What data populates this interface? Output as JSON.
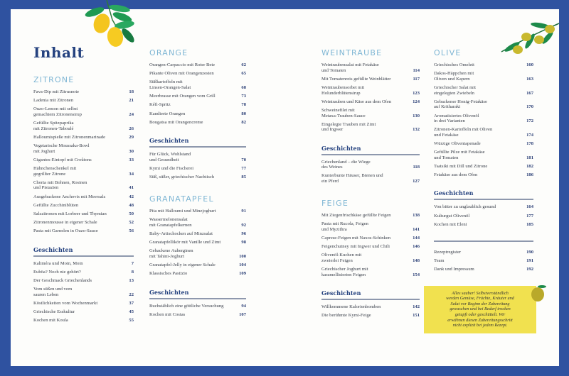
{
  "title": "Inhalt",
  "colors": {
    "border": "#2f52a0",
    "section_heading": "#7fb6d4",
    "title": "#25427f",
    "note_background": "#f1e14f"
  },
  "columns": [
    {
      "blocks": [
        {
          "type": "title",
          "label": "Inhalt"
        },
        {
          "type": "section",
          "heading": "ZITRONE",
          "items": [
            {
              "title": "Fava-Dip mit Zitrusnote",
              "page": "18"
            },
            {
              "title": "Ladenia mit Zitronen",
              "page": "21"
            },
            {
              "title": "Ouzo-Lemon mit selbst\ngemachtem Zitronensirup",
              "page": "24"
            },
            {
              "title": "Gefüllte Spitzpaprika\nmit Zitronen-Taboulé",
              "page": "26"
            },
            {
              "title": "Halloumispieße mit Zitronenmarinade",
              "page": "29"
            },
            {
              "title": "Vegetarische Moussaka-Bowl\nmit Joghurt",
              "page": "30"
            },
            {
              "title": "Gigantes-Eintopf mit Croûtons",
              "page": "33"
            },
            {
              "title": "Hähnchenschenkel mit\ngegrillter Zitrone",
              "page": "34"
            },
            {
              "title": "Chorta mit Bohnen, Rosinen\nund Pistazien",
              "page": "41"
            },
            {
              "title": "Ausgebackene Anchovis mit Meersalz",
              "page": "42"
            },
            {
              "title": "Gefüllte Zucchiniblüten",
              "page": "48"
            },
            {
              "title": "Salzzitronen mit Lorbeer und Thymian",
              "page": "50"
            },
            {
              "title": "Zitronenmousse in eigener Schale",
              "page": "52"
            },
            {
              "title": "Pasta mit Garnelen in Ouzo-Sauce",
              "page": "56"
            }
          ]
        },
        {
          "type": "stories",
          "heading": "Geschichten",
          "items": [
            {
              "title": "Kaliméra und Moin, Moin",
              "page": "7"
            },
            {
              "title": "Euböa? Noch nie gehört?",
              "page": "8"
            },
            {
              "title": "Der Geschmack Griechenlands",
              "page": "13"
            },
            {
              "title": "Vom süßen und vom\nsauren Leben",
              "page": "22"
            },
            {
              "title": "Köstlichkeiten vom Wochenmarkt",
              "page": "37"
            },
            {
              "title": "Griechische Esskultur",
              "page": "45"
            },
            {
              "title": "Kochen mit Koula",
              "page": "55"
            }
          ]
        }
      ]
    },
    {
      "blocks": [
        {
          "type": "section",
          "heading": "ORANGE",
          "items": [
            {
              "title": "Orangen-Carpaccio mit Roter Bete",
              "page": "62"
            },
            {
              "title": "Pikante Oliven mit Orangenzesten",
              "page": "65"
            },
            {
              "title": "Süßkartoffeln mit\nLinsen-Orangen-Salat",
              "page": "68"
            },
            {
              "title": "Meerbrasse mit Orangen vom Grill",
              "page": "73"
            },
            {
              "title": "Kéfi-Spritz",
              "page": "78"
            },
            {
              "title": "Kandierte Orangen",
              "page": "80"
            },
            {
              "title": "Bougatsa mit Orangencreme",
              "page": "82"
            }
          ]
        },
        {
          "type": "stories",
          "heading": "Geschichten",
          "items": [
            {
              "title": "Für Glück, Wohlstand\nund Gesundheit",
              "page": "70"
            },
            {
              "title": "Kymi und die Fischerei",
              "page": "77"
            },
            {
              "title": "Süß, süßer, griechischer Nachtisch",
              "page": "85"
            }
          ]
        },
        {
          "type": "section",
          "heading": "GRANATAPFEL",
          "items": [
            {
              "title": "Pita mit Halloumi und Minzjoghurt",
              "page": "91"
            },
            {
              "title": "Wassermelonensalat\nmit Granatapfelkernen",
              "page": "92"
            },
            {
              "title": "Baby-Artischocken auf Minzsalat",
              "page": "96"
            },
            {
              "title": "Granatapfellikör mit Vanille und Zimt",
              "page": "98"
            },
            {
              "title": "Gebackene Auberginen\nmit Tahini-Joghurt",
              "page": "100"
            },
            {
              "title": "Granatapfel-Jelly in eigener Schale",
              "page": "104"
            },
            {
              "title": "Klassisches Pastizio",
              "page": "109"
            }
          ]
        },
        {
          "type": "stories",
          "heading": "Geschichten",
          "items": [
            {
              "title": "Buchstäblich eine göttliche Versuchung",
              "page": "94"
            },
            {
              "title": "Kochen mit Costas",
              "page": "107"
            }
          ]
        }
      ]
    },
    {
      "blocks": [
        {
          "type": "section",
          "heading": "WEINTRAUBE",
          "items": [
            {
              "title": "Weintraubensalat mit Fetakäse\nund Tomaten",
              "page": "114"
            },
            {
              "title": "Mit Tomatenreis gefüllte Weinblätter",
              "page": "117"
            },
            {
              "title": "Weintraubensorbet mit\nHolunderblütensirup",
              "page": "123"
            },
            {
              "title": "Weintrauben und Käse aus dem Ofen",
              "page": "124"
            },
            {
              "title": "Schweinefilet mit\nMetaxa-Trauben-Sauce",
              "page": "130"
            },
            {
              "title": "Eingelegte Trauben mit Zimt\nund Ingwer",
              "page": "132"
            }
          ]
        },
        {
          "type": "stories",
          "heading": "Geschichten",
          "items": [
            {
              "title": "Griechenland – die Wiege\ndes Weines",
              "page": "118"
            },
            {
              "title": "Kunterbunte Häuser, Bienen und\nein Pferd",
              "page": "127"
            }
          ]
        },
        {
          "type": "section",
          "heading": "FEIGE",
          "items": [
            {
              "title": "Mit Ziegenfrischkäse gefüllte Feigen",
              "page": "138"
            },
            {
              "title": "Pasta mit Rucola, Feigen\nund Myzithra",
              "page": "141"
            },
            {
              "title": "Caprese-Feigen mit Naxos-Schinken",
              "page": "144"
            },
            {
              "title": "Feigenchutney mit Ingwer und Chili",
              "page": "146"
            },
            {
              "title": "Olivenöl-Kuchen mit\nzweierlei Feigen",
              "page": "148"
            },
            {
              "title": "Griechischer Joghurt mit\nkaramellisierten Feigen",
              "page": "154"
            }
          ]
        },
        {
          "type": "stories",
          "heading": "Geschichten",
          "items": [
            {
              "title": "Willkommene Kalorienbomben",
              "page": "142"
            },
            {
              "title": "Die berühmte Kymi-Feige",
              "page": "151"
            }
          ]
        }
      ]
    },
    {
      "blocks": [
        {
          "type": "section",
          "heading": "OLIVE",
          "items": [
            {
              "title": "Griechisches Omelett",
              "page": "160"
            },
            {
              "title": "Dakos-Häppchen mit\nOliven und Kapern",
              "page": "163"
            },
            {
              "title": "Griechischer Salat mit\neingelegten Zwiebeln",
              "page": "167"
            },
            {
              "title": "Gebackener Honig-Fetakäse\nauf Kritharaki",
              "page": "170"
            },
            {
              "title": "Aromatisiertes Olivenöl\nin drei Varianten",
              "page": "172"
            },
            {
              "title": "Zitronen-Kartoffeln mit Oliven\nund Fetakäse",
              "page": "174"
            },
            {
              "title": "Würzige Oliventapenade",
              "page": "178"
            },
            {
              "title": "Gefüllte Pilze mit Fetakäse\nund Tomaten",
              "page": "181"
            },
            {
              "title": "Tsatsiki mit Dill und Zitrone",
              "page": "182"
            },
            {
              "title": "Fetakäse aus dem Ofen",
              "page": "186"
            }
          ]
        },
        {
          "type": "stories",
          "heading": "Geschichten",
          "items": [
            {
              "title": "Von bitter zu unglaublich gesund",
              "page": "164"
            },
            {
              "title": "Kulturgut Olivenöl",
              "page": "177"
            },
            {
              "title": "Kochen mit Eleni",
              "page": "185"
            }
          ]
        },
        {
          "type": "appendix",
          "items": [
            {
              "title": "Rezeptregister",
              "page": "190"
            },
            {
              "title": "Team",
              "page": "191"
            },
            {
              "title": "Dank und Impressum",
              "page": "192"
            }
          ]
        }
      ]
    }
  ],
  "note": "Alles sauber! Selbstverständlich\nwerden Gemüse, Früchte, Kräuter und\nSalat vor Beginn der Zubereitung\ngewaschen und bei Bedarf trocken\ngetupft oder geschüttelt. Wir\nerwähnen diesen Zubereitungsschritt\nnicht explizit bei jedem Rezept.",
  "decorations": [
    "lemon-branch-icon",
    "olive-branch-icon",
    "olive-icon"
  ]
}
